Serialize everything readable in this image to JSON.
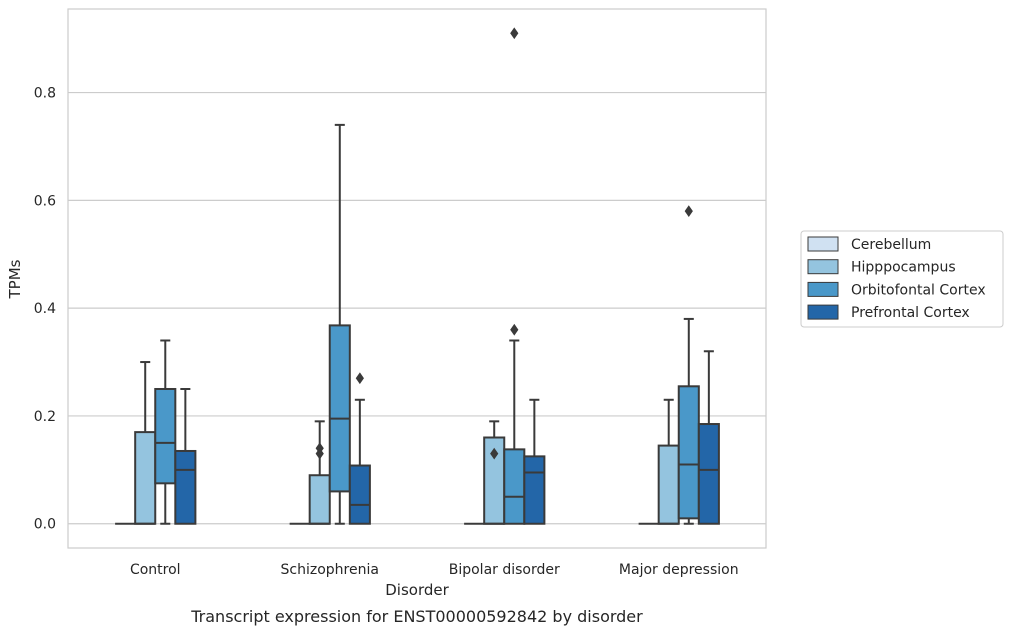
{
  "chart_data": {
    "type": "box",
    "xlabel": "Disorder",
    "ylabel": "TPMs",
    "caption": "Transcript expression for ENST00000592842 by disorder",
    "ylim": [
      -0.045,
      0.955
    ],
    "yticks": [
      0.0,
      0.2,
      0.4,
      0.6,
      0.8
    ],
    "ytick_labels": [
      "0.0",
      "0.2",
      "0.4",
      "0.6",
      "0.8"
    ],
    "grid": "horizontal",
    "legend_position": "right",
    "categories": [
      "Control",
      "Schizophrenia",
      "Bipolar disorder",
      "Major depression"
    ],
    "series": [
      {
        "name": "Cerebellum",
        "color": "#d0e1f2",
        "boxes": [
          {
            "whislo": 0,
            "q1": 0,
            "med": 0,
            "q3": 0,
            "whishi": 0,
            "fliers": []
          },
          {
            "whislo": 0,
            "q1": 0,
            "med": 0,
            "q3": 0,
            "whishi": 0,
            "fliers": []
          },
          {
            "whislo": 0,
            "q1": 0,
            "med": 0,
            "q3": 0,
            "whishi": 0,
            "fliers": []
          },
          {
            "whislo": 0,
            "q1": 0,
            "med": 0,
            "q3": 0,
            "whishi": 0,
            "fliers": []
          }
        ]
      },
      {
        "name": "Hipppocampus",
        "color": "#94c4df",
        "boxes": [
          {
            "whislo": 0,
            "q1": 0,
            "med": 0,
            "q3": 0.17,
            "whishi": 0.3,
            "fliers": []
          },
          {
            "whislo": 0,
            "q1": 0,
            "med": 0,
            "q3": 0.09,
            "whishi": 0.19,
            "fliers": [
              0.14,
              0.13
            ]
          },
          {
            "whislo": 0,
            "q1": 0,
            "med": 0,
            "q3": 0.16,
            "whishi": 0.19,
            "fliers": [
              0.13
            ]
          },
          {
            "whislo": 0,
            "q1": 0,
            "med": 0,
            "q3": 0.145,
            "whishi": 0.23,
            "fliers": []
          }
        ]
      },
      {
        "name": "Orbitofontal Cortex",
        "color": "#4a98c9",
        "boxes": [
          {
            "whislo": 0,
            "q1": 0.075,
            "med": 0.15,
            "q3": 0.25,
            "whishi": 0.34,
            "fliers": []
          },
          {
            "whislo": 0,
            "q1": 0.06,
            "med": 0.195,
            "q3": 0.368,
            "whishi": 0.74,
            "fliers": []
          },
          {
            "whislo": 0,
            "q1": 0,
            "med": 0.05,
            "q3": 0.138,
            "whishi": 0.34,
            "fliers": [
              0.36,
              0.91
            ]
          },
          {
            "whislo": 0,
            "q1": 0.01,
            "med": 0.11,
            "q3": 0.255,
            "whishi": 0.38,
            "fliers": [
              0.58
            ]
          }
        ]
      },
      {
        "name": "Prefrontal Cortex",
        "color": "#2366a8",
        "boxes": [
          {
            "whislo": 0,
            "q1": 0,
            "med": 0.1,
            "q3": 0.135,
            "whishi": 0.25,
            "fliers": []
          },
          {
            "whislo": 0,
            "q1": 0,
            "med": 0.035,
            "q3": 0.108,
            "whishi": 0.23,
            "fliers": [
              0.27
            ]
          },
          {
            "whislo": 0,
            "q1": 0,
            "med": 0.095,
            "q3": 0.125,
            "whishi": 0.23,
            "fliers": []
          },
          {
            "whislo": 0,
            "q1": 0,
            "med": 0.1,
            "q3": 0.185,
            "whishi": 0.32,
            "fliers": []
          }
        ]
      }
    ]
  }
}
